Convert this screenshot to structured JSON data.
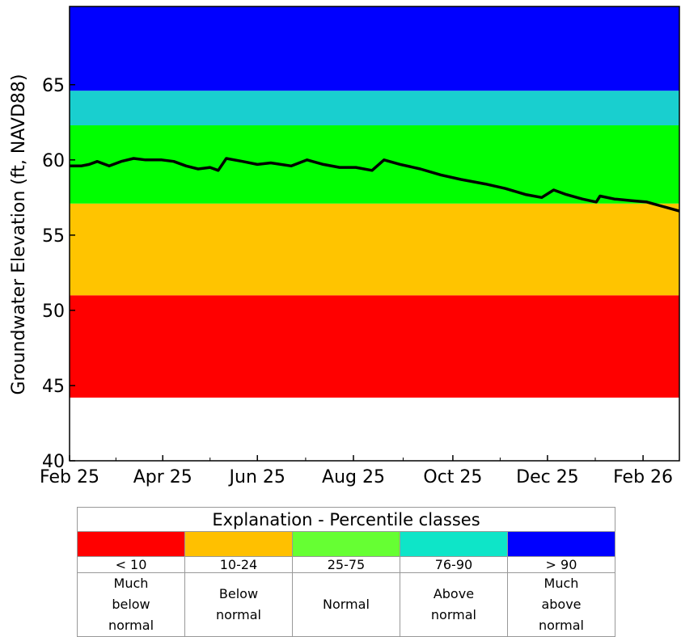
{
  "chart_data": {
    "type": "line",
    "y_label": "Groundwater Elevation (ft, NAVD88)",
    "xlim": [
      0,
      12.76
    ],
    "xticks": [
      {
        "value": 0,
        "label": "Feb 25"
      },
      {
        "value": 1.95,
        "label": "Apr 25"
      },
      {
        "value": 3.93,
        "label": "Jun 25"
      },
      {
        "value": 5.94,
        "label": "Aug 25"
      },
      {
        "value": 8.02,
        "label": "Oct 25"
      },
      {
        "value": 10.0,
        "label": "Dec 25"
      },
      {
        "value": 12.0,
        "label": "Feb 26"
      }
    ],
    "xminor": [
      0.97,
      2.94,
      4.94,
      6.98,
      9.01,
      11.0
    ],
    "ylim": [
      40,
      70.2
    ],
    "yticks": [
      40,
      45,
      50,
      55,
      60,
      65
    ],
    "bands": [
      {
        "from": 44.2,
        "to": 51.0,
        "color": "#ff0000"
      },
      {
        "from": 51.0,
        "to": 57.1,
        "color": "#ffc400"
      },
      {
        "from": 57.1,
        "to": 62.3,
        "color": "#00ff00"
      },
      {
        "from": 62.3,
        "to": 64.6,
        "color": "#19cfcf"
      },
      {
        "from": 64.6,
        "to": 70.2,
        "color": "#0000ff"
      }
    ],
    "series": [
      {
        "color": "#000000",
        "x": [
          0,
          0.24,
          0.41,
          0.58,
          0.83,
          1.08,
          1.34,
          1.59,
          1.93,
          2.18,
          2.44,
          2.69,
          2.94,
          3.11,
          3.28,
          3.62,
          3.93,
          4.21,
          4.64,
          4.97,
          5.31,
          5.65,
          5.99,
          6.33,
          6.58,
          6.92,
          7.34,
          7.77,
          8.19,
          8.7,
          9.12,
          9.54,
          9.88,
          10.13,
          10.39,
          10.73,
          11.02,
          11.1,
          11.4,
          11.74,
          12.08,
          12.42,
          12.76
        ],
        "values": [
          59.6,
          59.6,
          59.7,
          59.9,
          59.6,
          59.9,
          60.1,
          60.0,
          60.0,
          59.9,
          59.6,
          59.4,
          59.5,
          59.3,
          60.1,
          59.9,
          59.7,
          59.8,
          59.6,
          60.0,
          59.7,
          59.5,
          59.5,
          59.3,
          60.0,
          59.7,
          59.4,
          59.0,
          58.7,
          58.4,
          58.1,
          57.7,
          57.5,
          58.0,
          57.7,
          57.4,
          57.2,
          57.6,
          57.4,
          57.3,
          57.2,
          56.9,
          56.6
        ]
      }
    ]
  },
  "legend_table": {
    "title": "Explanation - Percentile classes",
    "classes": [
      {
        "color": "#ff0000",
        "range": "< 10",
        "description": "Much below normal"
      },
      {
        "color": "#ffc000",
        "range": "10-24",
        "description": "Below normal"
      },
      {
        "color": "#66ff33",
        "range": "25-75",
        "description": "Normal"
      },
      {
        "color": "#0ee5c8",
        "range": "76-90",
        "description": "Above normal"
      },
      {
        "color": "#0000ff",
        "range": "> 90",
        "description": "Much above normal"
      }
    ]
  }
}
